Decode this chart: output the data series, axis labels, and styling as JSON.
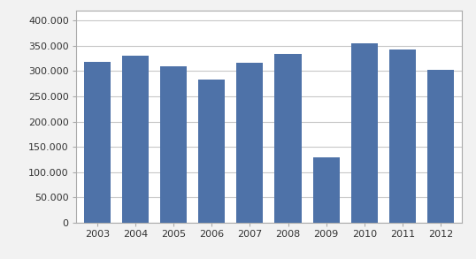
{
  "years": [
    "2003",
    "2004",
    "2005",
    "2006",
    "2007",
    "2008",
    "2009",
    "2010",
    "2011",
    "2012"
  ],
  "values": [
    317849,
    330854,
    309727,
    282632,
    316705,
    334092,
    130000,
    355000,
    342000,
    303000
  ],
  "bar_color": "#4e72a8",
  "ylim": [
    0,
    420000
  ],
  "yticks": [
    0,
    50000,
    100000,
    150000,
    200000,
    250000,
    300000,
    350000,
    400000
  ],
  "ytick_labels": [
    "0",
    "50.000",
    "100.000",
    "150.000",
    "200.000",
    "250.000",
    "300.000",
    "350.000",
    "400.000"
  ],
  "background_color": "#f2f2f2",
  "plot_bg_color": "#ffffff",
  "grid_color": "#c8c8c8",
  "bar_width": 0.7,
  "tick_fontsize": 8,
  "border_color": "#aaaaaa"
}
